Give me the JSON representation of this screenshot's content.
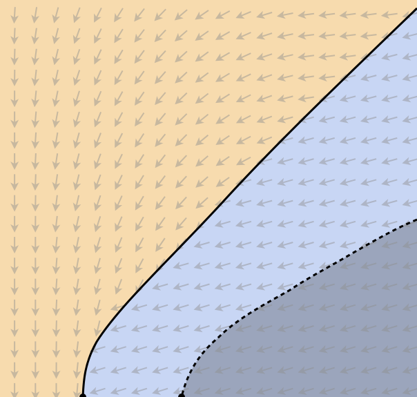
{
  "diagram": {
    "type": "phase-portrait",
    "labels": [],
    "regions": [
      {
        "name": "region-left",
        "fill": "#f7dbae"
      },
      {
        "name": "region-right",
        "fill": "#c8d6f4"
      },
      {
        "name": "region-shaded",
        "fill": "#9ba5bc"
      }
    ],
    "boundaries": [
      {
        "name": "separatrix",
        "style": "solid",
        "color": "#000000"
      },
      {
        "name": "dashed-boundary",
        "style": "dashed",
        "color": "#000000"
      }
    ],
    "vector_field": {
      "arrow_color": "#8f8f8f",
      "arrow_opacity": 0.45,
      "grid_columns": 20,
      "grid_rows": 19
    }
  }
}
